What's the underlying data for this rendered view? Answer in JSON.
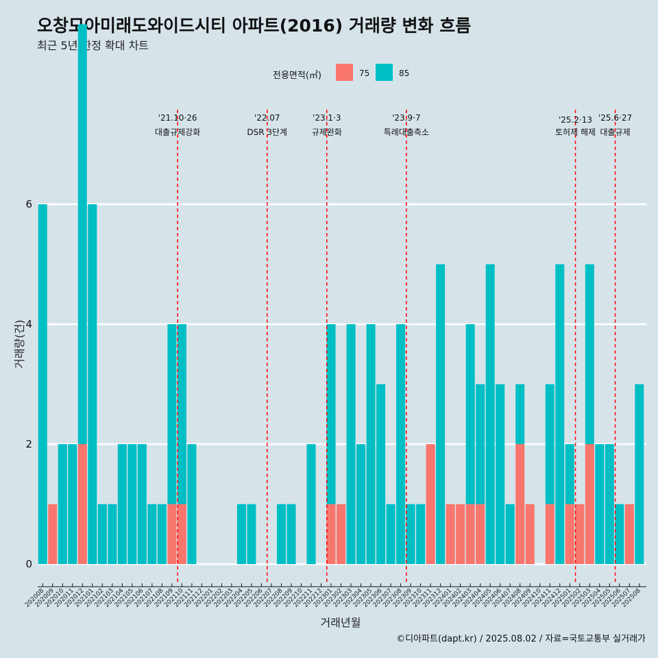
{
  "title": "오창모아미래도와이드시티 아파트(2016) 거래량 변화 흐름",
  "subtitle": "최근 5년 한정 확대 차트",
  "footer": "©디아파트(dapt.kr) / 2025.08.02 / 자료=국토교통부 실거래가",
  "colors": {
    "s75": "#f8766d",
    "s85": "#00bfc4",
    "event": "#ff0000",
    "grid": "#ffffff"
  },
  "chart_data": {
    "type": "bar",
    "xlabel": "거래년월",
    "ylabel": "거래량(건)",
    "ylim": [
      0,
      7
    ],
    "y_ticks": [
      0,
      2,
      4,
      6
    ],
    "grid": true,
    "legend": {
      "title": "전용면적(㎡)",
      "position": "top",
      "labels": [
        "75",
        "85"
      ]
    },
    "categories": [
      "202008",
      "202009",
      "202010",
      "202011",
      "202012",
      "202101",
      "202102",
      "202103",
      "202104",
      "202105",
      "202106",
      "202107",
      "202108",
      "202109",
      "202110",
      "202111",
      "202112",
      "202201",
      "202202",
      "202203",
      "202204",
      "202205",
      "202206",
      "202207",
      "202208",
      "202209",
      "202210",
      "202211",
      "202212",
      "202301",
      "202302",
      "202303",
      "202304",
      "202305",
      "202306",
      "202307",
      "202308",
      "202309",
      "202310",
      "202311",
      "202312",
      "202401",
      "202402",
      "202403",
      "202404",
      "202405",
      "202406",
      "202407",
      "202408",
      "202409",
      "202410",
      "202411",
      "202412",
      "202501",
      "202502",
      "202503",
      "202504",
      "202505",
      "202506",
      "202507",
      "202508"
    ],
    "series": [
      {
        "name": "75",
        "values": [
          0,
          1,
          0,
          0,
          2,
          0,
          0,
          0,
          0,
          0,
          0,
          0,
          0,
          1,
          1,
          0,
          0,
          0,
          0,
          0,
          0,
          0,
          0,
          0,
          0,
          0,
          0,
          0,
          0,
          1,
          1,
          0,
          0,
          0,
          0,
          0,
          0,
          0,
          0,
          2,
          0,
          1,
          1,
          1,
          1,
          0,
          0,
          0,
          2,
          1,
          0,
          1,
          0,
          1,
          1,
          2,
          0,
          0,
          0,
          1,
          0
        ]
      },
      {
        "name": "85",
        "values": [
          6,
          0,
          2,
          2,
          7,
          6,
          1,
          1,
          2,
          2,
          2,
          1,
          1,
          3,
          3,
          2,
          0,
          0,
          0,
          0,
          1,
          1,
          0,
          0,
          1,
          1,
          0,
          2,
          0,
          3,
          0,
          4,
          2,
          4,
          3,
          1,
          4,
          1,
          1,
          0,
          5,
          0,
          0,
          3,
          2,
          5,
          3,
          1,
          1,
          0,
          0,
          2,
          5,
          1,
          0,
          3,
          2,
          2,
          1,
          0,
          3
        ]
      }
    ],
    "events": [
      {
        "date": "'21.10·26",
        "label": "대출규제강화",
        "month": "202110"
      },
      {
        "date": "'22.07",
        "label": "DSR 3단계",
        "month": "202207"
      },
      {
        "date": "'23.1·3",
        "label": "규제완화",
        "month": "202301"
      },
      {
        "date": "'23.9·7",
        "label": "특례대출축소",
        "month": "202309"
      },
      {
        "date": "'25.2·13",
        "label": "토허제 해제",
        "month": "202502"
      },
      {
        "date": "'25.6·27",
        "label": "대출규제",
        "month": "202506"
      }
    ]
  }
}
